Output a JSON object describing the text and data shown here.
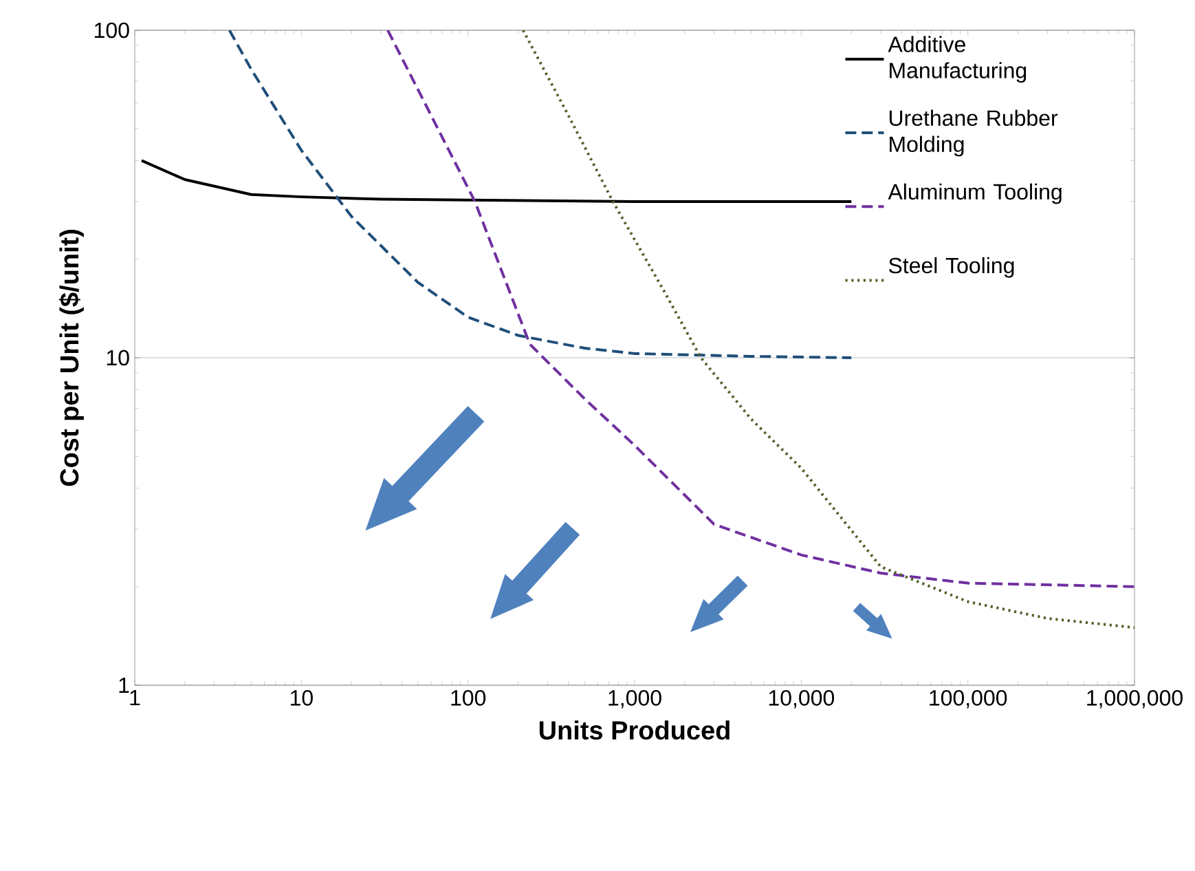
{
  "chart_data": {
    "type": "line",
    "xlabel": "Units Produced",
    "ylabel": "Cost per Unit ($/unit)",
    "log": "xy",
    "grid": "y",
    "legend": "top right",
    "marker": "none",
    "xlim": [
      1,
      1000000
    ],
    "ylim": [
      1,
      100
    ],
    "xticks": [
      1,
      10,
      100,
      {
        "value": 1000,
        "label": "1,000"
      },
      {
        "value": 10000,
        "label": "10,000"
      },
      {
        "value": 100000,
        "label": "100,000"
      },
      {
        "value": 1000000,
        "label": "1,000,000"
      }
    ],
    "yticks": [
      1,
      10,
      100
    ],
    "series": [
      {
        "name": "Additive Manufacturing",
        "color": "#000000",
        "line_style": "solid",
        "x": [
          1.1,
          2,
          5,
          10,
          30,
          100,
          1000,
          20000
        ],
        "values": [
          40,
          35,
          31.5,
          31,
          30.5,
          30.3,
          30,
          30
        ]
      },
      {
        "name": "Urethane Rubber Molding",
        "color": "#1f4e79",
        "line_style": "dashed",
        "x": [
          3.7,
          5,
          10,
          20,
          50,
          100,
          200,
          500,
          1000,
          5000,
          20000
        ],
        "values": [
          100,
          76,
          43,
          27,
          17,
          13.3,
          11.7,
          10.7,
          10.3,
          10.1,
          10
        ]
      },
      {
        "name": "Aluminum Tooling",
        "color": "#7030a0",
        "line_style": "dashed",
        "x": [
          33,
          60,
          110,
          235,
          500,
          1000,
          3000,
          10000,
          30000,
          100000,
          1000000
        ],
        "values": [
          100,
          55,
          30,
          11,
          7.5,
          5.4,
          3.1,
          2.5,
          2.2,
          2.05,
          2
        ]
      },
      {
        "name": "Steel Tooling",
        "color": "#4f6228",
        "line_style": "dotted",
        "x": [
          214,
          400,
          740,
          1500,
          2500,
          5000,
          10000,
          30000,
          100000,
          300000,
          1000000
        ],
        "values": [
          100,
          55,
          30,
          16,
          10,
          6.5,
          4.6,
          2.3,
          1.8,
          1.6,
          1.5
        ]
      }
    ]
  }
}
